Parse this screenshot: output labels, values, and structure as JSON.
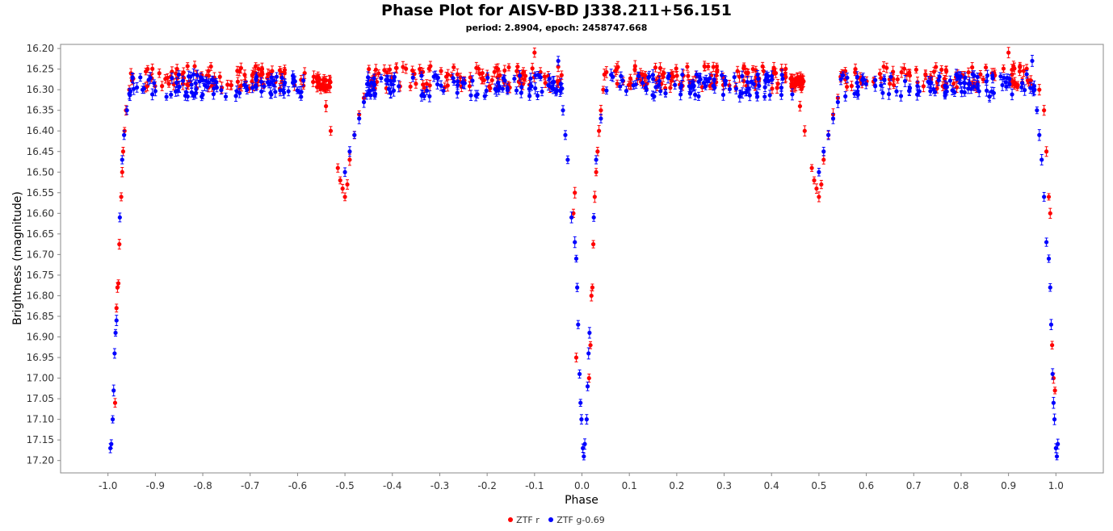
{
  "chart_data": {
    "type": "scatter",
    "title": "Phase Plot for AISV-BD J338.211+56.151",
    "subtitle": "period: 2.8904, epoch: 2458747.668",
    "xlabel": "Phase",
    "ylabel": "Brightness (magnitude)",
    "xlim": [
      -1.1,
      1.1
    ],
    "ylim": [
      17.23,
      16.19
    ],
    "y_inverted": true,
    "x_ticks": [
      "-1.0",
      "-0.9",
      "-0.8",
      "-0.7",
      "-0.6",
      "-0.5",
      "-0.4",
      "-0.3",
      "-0.2",
      "-0.1",
      "0.0",
      "0.1",
      "0.2",
      "0.3",
      "0.4",
      "0.5",
      "0.6",
      "0.7",
      "0.8",
      "0.9",
      "1.0"
    ],
    "y_ticks": [
      "16.20",
      "16.25",
      "16.30",
      "16.35",
      "16.40",
      "16.45",
      "16.50",
      "16.55",
      "16.60",
      "16.65",
      "16.70",
      "16.75",
      "16.80",
      "16.85",
      "16.90",
      "16.95",
      "17.00",
      "17.05",
      "17.10",
      "17.15",
      "17.20"
    ],
    "grid": false,
    "legend_position": "bottom",
    "series": [
      {
        "name": "ZTF r",
        "color": "#ff0000",
        "baseline": 16.27,
        "points": [
          [
            -0.985,
            17.06
          ],
          [
            -0.982,
            16.83
          ],
          [
            -0.98,
            16.78
          ],
          [
            -0.978,
            16.77
          ],
          [
            -0.976,
            16.675
          ],
          [
            -0.972,
            16.56
          ],
          [
            -0.97,
            16.5
          ],
          [
            -0.968,
            16.45
          ],
          [
            -0.965,
            16.4
          ],
          [
            -0.962,
            16.35
          ],
          [
            -0.955,
            16.3
          ],
          [
            -0.1,
            16.21
          ],
          [
            -0.515,
            16.49
          ],
          [
            -0.51,
            16.52
          ],
          [
            -0.505,
            16.54
          ],
          [
            -0.5,
            16.56
          ],
          [
            -0.495,
            16.53
          ],
          [
            -0.49,
            16.47
          ],
          [
            -0.48,
            16.41
          ],
          [
            -0.47,
            16.36
          ],
          [
            -0.46,
            16.32
          ],
          [
            -0.53,
            16.4
          ],
          [
            -0.54,
            16.34
          ],
          [
            0.015,
            17.0
          ],
          [
            0.018,
            16.92
          ],
          [
            0.02,
            16.8
          ],
          [
            0.022,
            16.78
          ],
          [
            0.024,
            16.675
          ],
          [
            0.027,
            16.56
          ],
          [
            0.03,
            16.5
          ],
          [
            0.033,
            16.45
          ],
          [
            0.036,
            16.4
          ],
          [
            0.04,
            16.35
          ],
          [
            0.045,
            16.3
          ],
          [
            0.9,
            16.21
          ],
          [
            0.485,
            16.49
          ],
          [
            0.49,
            16.52
          ],
          [
            0.495,
            16.54
          ],
          [
            0.5,
            16.56
          ],
          [
            0.505,
            16.53
          ],
          [
            0.51,
            16.47
          ],
          [
            0.52,
            16.41
          ],
          [
            0.53,
            16.36
          ],
          [
            0.54,
            16.32
          ],
          [
            0.47,
            16.4
          ],
          [
            0.46,
            16.34
          ],
          [
            -0.015,
            16.55
          ],
          [
            -0.018,
            16.6
          ],
          [
            -0.012,
            16.95
          ],
          [
            0.985,
            16.56
          ],
          [
            0.988,
            16.6
          ],
          [
            0.992,
            16.92
          ],
          [
            0.995,
            17.0
          ],
          [
            0.998,
            17.03
          ],
          [
            0.975,
            16.35
          ],
          [
            0.98,
            16.45
          ],
          [
            0.965,
            16.3
          ]
        ]
      },
      {
        "name": "ZTF g-0.69",
        "color": "#0000ff",
        "baseline": 16.29,
        "points": [
          [
            -0.995,
            17.17
          ],
          [
            -0.993,
            17.16
          ],
          [
            -0.99,
            17.1
          ],
          [
            -0.988,
            17.03
          ],
          [
            -0.986,
            16.94
          ],
          [
            -0.984,
            16.89
          ],
          [
            -0.982,
            16.86
          ],
          [
            -0.975,
            16.61
          ],
          [
            -0.97,
            16.47
          ],
          [
            -0.966,
            16.41
          ],
          [
            -0.96,
            16.35
          ],
          [
            -0.955,
            16.31
          ],
          [
            -0.5,
            16.5
          ],
          [
            -0.49,
            16.45
          ],
          [
            -0.48,
            16.41
          ],
          [
            -0.47,
            16.37
          ],
          [
            -0.46,
            16.33
          ],
          [
            -0.045,
            16.3
          ],
          [
            -0.04,
            16.35
          ],
          [
            -0.035,
            16.41
          ],
          [
            -0.03,
            16.47
          ],
          [
            -0.022,
            16.61
          ],
          [
            -0.015,
            16.67
          ],
          [
            -0.012,
            16.71
          ],
          [
            -0.01,
            16.78
          ],
          [
            -0.008,
            16.87
          ],
          [
            -0.005,
            16.99
          ],
          [
            -0.003,
            17.06
          ],
          [
            -0.001,
            17.1
          ],
          [
            0.002,
            17.17
          ],
          [
            0.004,
            17.19
          ],
          [
            0.006,
            17.16
          ],
          [
            0.01,
            17.1
          ],
          [
            0.012,
            17.02
          ],
          [
            0.014,
            16.94
          ],
          [
            0.016,
            16.89
          ],
          [
            0.025,
            16.61
          ],
          [
            0.03,
            16.47
          ],
          [
            0.04,
            16.37
          ],
          [
            0.95,
            16.23
          ],
          [
            -0.05,
            16.23
          ],
          [
            0.5,
            16.5
          ],
          [
            0.51,
            16.45
          ],
          [
            0.52,
            16.41
          ],
          [
            0.53,
            16.37
          ],
          [
            0.54,
            16.33
          ],
          [
            0.955,
            16.3
          ],
          [
            0.96,
            16.35
          ],
          [
            0.965,
            16.41
          ],
          [
            0.97,
            16.47
          ],
          [
            0.975,
            16.56
          ],
          [
            0.98,
            16.67
          ],
          [
            0.985,
            16.71
          ],
          [
            0.988,
            16.78
          ],
          [
            0.99,
            16.87
          ],
          [
            0.993,
            16.99
          ],
          [
            0.995,
            17.06
          ],
          [
            0.997,
            17.1
          ],
          [
            1.0,
            17.17
          ],
          [
            1.002,
            17.19
          ],
          [
            1.004,
            17.16
          ]
        ]
      }
    ]
  }
}
